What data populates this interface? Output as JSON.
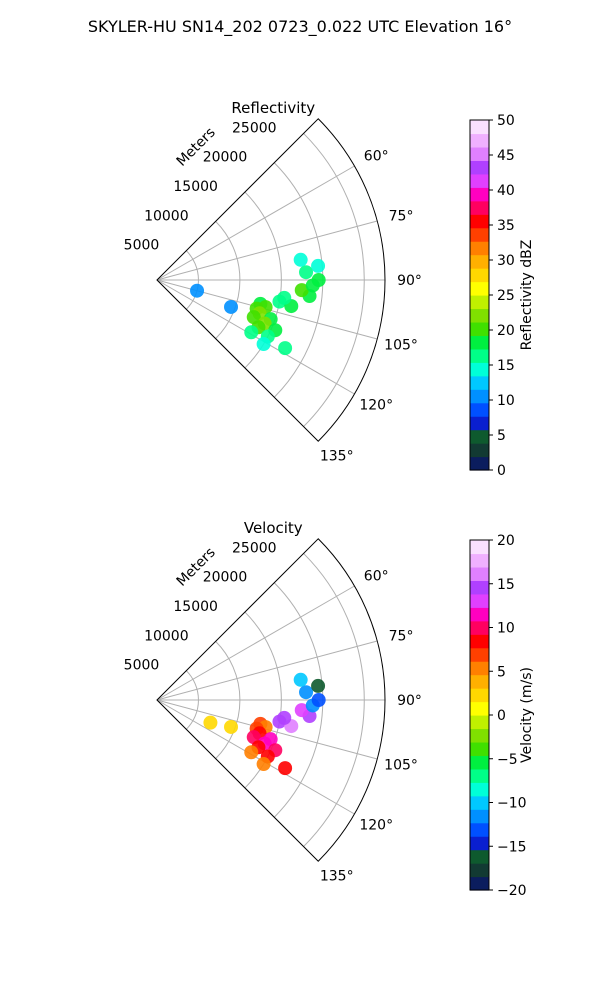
{
  "title": "SKYLER-HU  SN14_202  0723_0.022 UTC Elevation 16°",
  "chart_data": [
    {
      "type": "polar_sector",
      "title": "Reflectivity",
      "range_label": "Meters",
      "azimuth_range_deg": [
        45,
        135
      ],
      "radial_max_m": 27500,
      "range_ticks": [
        5000,
        10000,
        15000,
        20000,
        25000
      ],
      "range_tick_labels": [
        "5000",
        "10000",
        "15000",
        "20000",
        "25000"
      ],
      "azimuth_ticks_deg": [
        60,
        75,
        90,
        105,
        120,
        135
      ],
      "azimuth_tick_labels": [
        "60°",
        "75°",
        "90°",
        "105°",
        "120°",
        "135°"
      ],
      "colorbar": {
        "label": "Reflectivity dBZ",
        "min": 0,
        "max": 50,
        "ticks": [
          0,
          5,
          10,
          15,
          20,
          25,
          30,
          35,
          40,
          45,
          50
        ],
        "tick_labels": [
          "0",
          "5",
          "10",
          "15",
          "20",
          "25",
          "30",
          "35",
          "40",
          "45",
          "50"
        ],
        "colors": [
          "#0b1d5e",
          "#123a33",
          "#0e5a2e",
          "#0a1fd0",
          "#0050ff",
          "#0090ff",
          "#00c8ff",
          "#00ffd8",
          "#00ff88",
          "#00f040",
          "#40e000",
          "#80e000",
          "#c0f000",
          "#ffff00",
          "#ffd800",
          "#ffb000",
          "#ff8000",
          "#ff4000",
          "#ff0000",
          "#ff0060",
          "#ff00c0",
          "#e040ff",
          "#b040ff",
          "#e080ff",
          "#f0b0ff",
          "#fae0ff"
        ]
      },
      "echoes": [
        {
          "az": 105,
          "r": 5000,
          "value": 10
        },
        {
          "az": 103,
          "r": 12800,
          "value": 18
        },
        {
          "az": 104,
          "r": 13500,
          "value": 21
        },
        {
          "az": 106,
          "r": 12500,
          "value": 20
        },
        {
          "az": 108,
          "r": 13000,
          "value": 22
        },
        {
          "az": 109,
          "r": 14500,
          "value": 19
        },
        {
          "az": 111,
          "r": 12500,
          "value": 21
        },
        {
          "az": 112,
          "r": 14000,
          "value": 23
        },
        {
          "az": 113,
          "r": 15500,
          "value": 18
        },
        {
          "az": 115,
          "r": 13500,
          "value": 20
        },
        {
          "az": 117,
          "r": 15000,
          "value": 17
        },
        {
          "az": 119,
          "r": 13000,
          "value": 16
        },
        {
          "az": 121,
          "r": 15000,
          "value": 15
        },
        {
          "az": 100,
          "r": 15000,
          "value": 17
        },
        {
          "az": 101,
          "r": 16500,
          "value": 18
        },
        {
          "az": 98,
          "r": 15500,
          "value": 16
        },
        {
          "az": 96,
          "r": 18500,
          "value": 18
        },
        {
          "az": 94,
          "r": 17500,
          "value": 20
        },
        {
          "az": 92,
          "r": 18800,
          "value": 19
        },
        {
          "az": 90,
          "r": 19500,
          "value": 18
        },
        {
          "az": 87,
          "r": 18000,
          "value": 16
        },
        {
          "az": 85,
          "r": 19500,
          "value": 15
        },
        {
          "az": 82,
          "r": 17500,
          "value": 14
        },
        {
          "az": 110,
          "r": 9500,
          "value": 11
        },
        {
          "az": 118,
          "r": 17500,
          "value": 16
        }
      ]
    },
    {
      "type": "polar_sector",
      "title": "Velocity",
      "range_label": "Meters",
      "azimuth_range_deg": [
        45,
        135
      ],
      "radial_max_m": 27500,
      "range_ticks": [
        5000,
        10000,
        15000,
        20000,
        25000
      ],
      "range_tick_labels": [
        "5000",
        "10000",
        "15000",
        "20000",
        "25000"
      ],
      "azimuth_ticks_deg": [
        60,
        75,
        90,
        105,
        120,
        135
      ],
      "azimuth_tick_labels": [
        "60°",
        "75°",
        "90°",
        "105°",
        "120°",
        "135°"
      ],
      "colorbar": {
        "label": "Velocity (m/s)",
        "min": -20,
        "max": 20,
        "ticks": [
          -20,
          -15,
          -10,
          -5,
          0,
          5,
          10,
          15,
          20
        ],
        "tick_labels": [
          "−20",
          "−15",
          "−10",
          "−5",
          "0",
          "5",
          "10",
          "15",
          "20"
        ],
        "colors": [
          "#0b1d5e",
          "#123a33",
          "#0e5a2e",
          "#0a1fd0",
          "#0050ff",
          "#0090ff",
          "#00c8ff",
          "#00ffd8",
          "#00ff88",
          "#00f040",
          "#40e000",
          "#80e000",
          "#c0f000",
          "#ffff00",
          "#ffd800",
          "#ffb000",
          "#ff8000",
          "#ff4000",
          "#ff0000",
          "#ff0060",
          "#ff00c0",
          "#e040ff",
          "#b040ff",
          "#e080ff",
          "#f0b0ff",
          "#fae0ff"
        ]
      },
      "echoes": [
        {
          "az": 113,
          "r": 7000,
          "value": 2
        },
        {
          "az": 103,
          "r": 12800,
          "value": 7
        },
        {
          "az": 104,
          "r": 13500,
          "value": 6
        },
        {
          "az": 106,
          "r": 12500,
          "value": 7
        },
        {
          "az": 108,
          "r": 13000,
          "value": 9
        },
        {
          "az": 109,
          "r": 14500,
          "value": 11
        },
        {
          "az": 111,
          "r": 12500,
          "value": 10
        },
        {
          "az": 112,
          "r": 14000,
          "value": 11
        },
        {
          "az": 113,
          "r": 15500,
          "value": 10
        },
        {
          "az": 115,
          "r": 13500,
          "value": 9
        },
        {
          "az": 117,
          "r": 15000,
          "value": 8
        },
        {
          "az": 119,
          "r": 13000,
          "value": 6
        },
        {
          "az": 121,
          "r": 15000,
          "value": 5
        },
        {
          "az": 100,
          "r": 15000,
          "value": 15
        },
        {
          "az": 101,
          "r": 16500,
          "value": 16
        },
        {
          "az": 98,
          "r": 15500,
          "value": 15
        },
        {
          "az": 96,
          "r": 18500,
          "value": 14
        },
        {
          "az": 94,
          "r": 17500,
          "value": 13
        },
        {
          "az": 92,
          "r": 18800,
          "value": -12
        },
        {
          "az": 90,
          "r": 19500,
          "value": -13
        },
        {
          "az": 87,
          "r": 18000,
          "value": -11
        },
        {
          "az": 85,
          "r": 19500,
          "value": -16
        },
        {
          "az": 82,
          "r": 17500,
          "value": -10
        },
        {
          "az": 110,
          "r": 9500,
          "value": 3
        },
        {
          "az": 118,
          "r": 17500,
          "value": 9
        }
      ]
    }
  ]
}
